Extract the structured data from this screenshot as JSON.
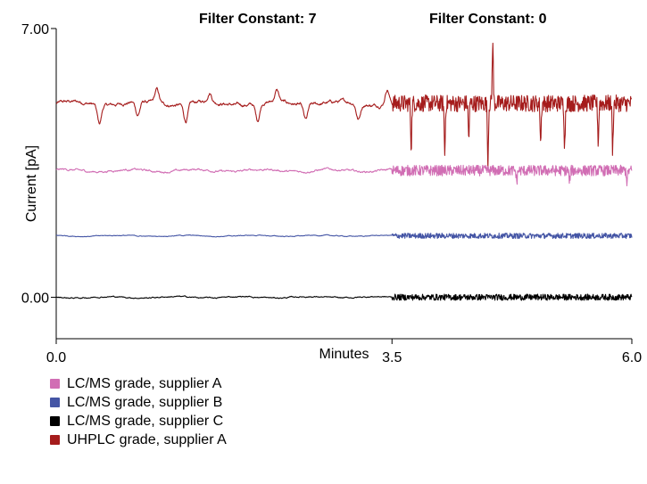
{
  "chart_data": {
    "type": "line",
    "title": "",
    "xlabel": "Minutes",
    "ylabel": "Current [pA]",
    "xlim": [
      0,
      6
    ],
    "ylim": [
      -1.08,
      7
    ],
    "x_ticks": [
      {
        "value": 0,
        "label": "0.0"
      },
      {
        "value": 3.5,
        "label": "3.5"
      },
      {
        "value": 6,
        "label": "6.0"
      }
    ],
    "y_ticks": [
      {
        "value": 0,
        "label": "0.00"
      },
      {
        "value": 7,
        "label": "7.00"
      }
    ],
    "annotations": [
      {
        "text": "Filter Constant: 7",
        "x": 2.1
      },
      {
        "text": "Filter Constant: 0",
        "x": 4.5
      }
    ],
    "filter_change_x": 3.5,
    "grid": false,
    "legend_position": "bottom-left",
    "series": [
      {
        "name": "UHPLC grade, supplier A",
        "color": "#a51c1c",
        "baseline": 5.05,
        "noise_filtered": 0.08,
        "noise_raw": 0.22,
        "spikes": [
          {
            "x": 0.45,
            "dy": -0.5
          },
          {
            "x": 0.85,
            "dy": -0.35
          },
          {
            "x": 1.05,
            "dy": 0.35
          },
          {
            "x": 1.35,
            "dy": -0.45
          },
          {
            "x": 1.6,
            "dy": 0.25
          },
          {
            "x": 2.1,
            "dy": -0.45
          },
          {
            "x": 2.3,
            "dy": 0.3
          },
          {
            "x": 2.6,
            "dy": -0.4
          },
          {
            "x": 3.15,
            "dy": -0.4
          },
          {
            "x": 3.45,
            "dy": 0.4
          },
          {
            "x": 3.7,
            "dy": -1.1
          },
          {
            "x": 4.05,
            "dy": -1.3
          },
          {
            "x": 4.3,
            "dy": -0.9
          },
          {
            "x": 4.5,
            "dy": -1.5
          },
          {
            "x": 4.55,
            "dy": 1.6
          },
          {
            "x": 5.05,
            "dy": -1.0
          },
          {
            "x": 5.3,
            "dy": -1.1
          },
          {
            "x": 5.65,
            "dy": -1.0
          },
          {
            "x": 5.8,
            "dy": -1.2
          }
        ]
      },
      {
        "name": "LC/MS grade, supplier A",
        "color": "#d16eb4",
        "baseline": 3.3,
        "noise_filtered": 0.05,
        "noise_raw": 0.14,
        "spikes": [
          {
            "x": 4.8,
            "dy": -0.3
          },
          {
            "x": 5.35,
            "dy": -0.3
          },
          {
            "x": 5.95,
            "dy": -0.3
          }
        ]
      },
      {
        "name": "LC/MS grade, supplier B",
        "color": "#4455a5",
        "baseline": 1.6,
        "noise_filtered": 0.02,
        "noise_raw": 0.07,
        "spikes": []
      },
      {
        "name": "LC/MS grade, supplier C",
        "color": "#000000",
        "baseline": 0.0,
        "noise_filtered": 0.03,
        "noise_raw": 0.08,
        "spikes": []
      }
    ],
    "legend_order": [
      1,
      2,
      3,
      0
    ]
  }
}
